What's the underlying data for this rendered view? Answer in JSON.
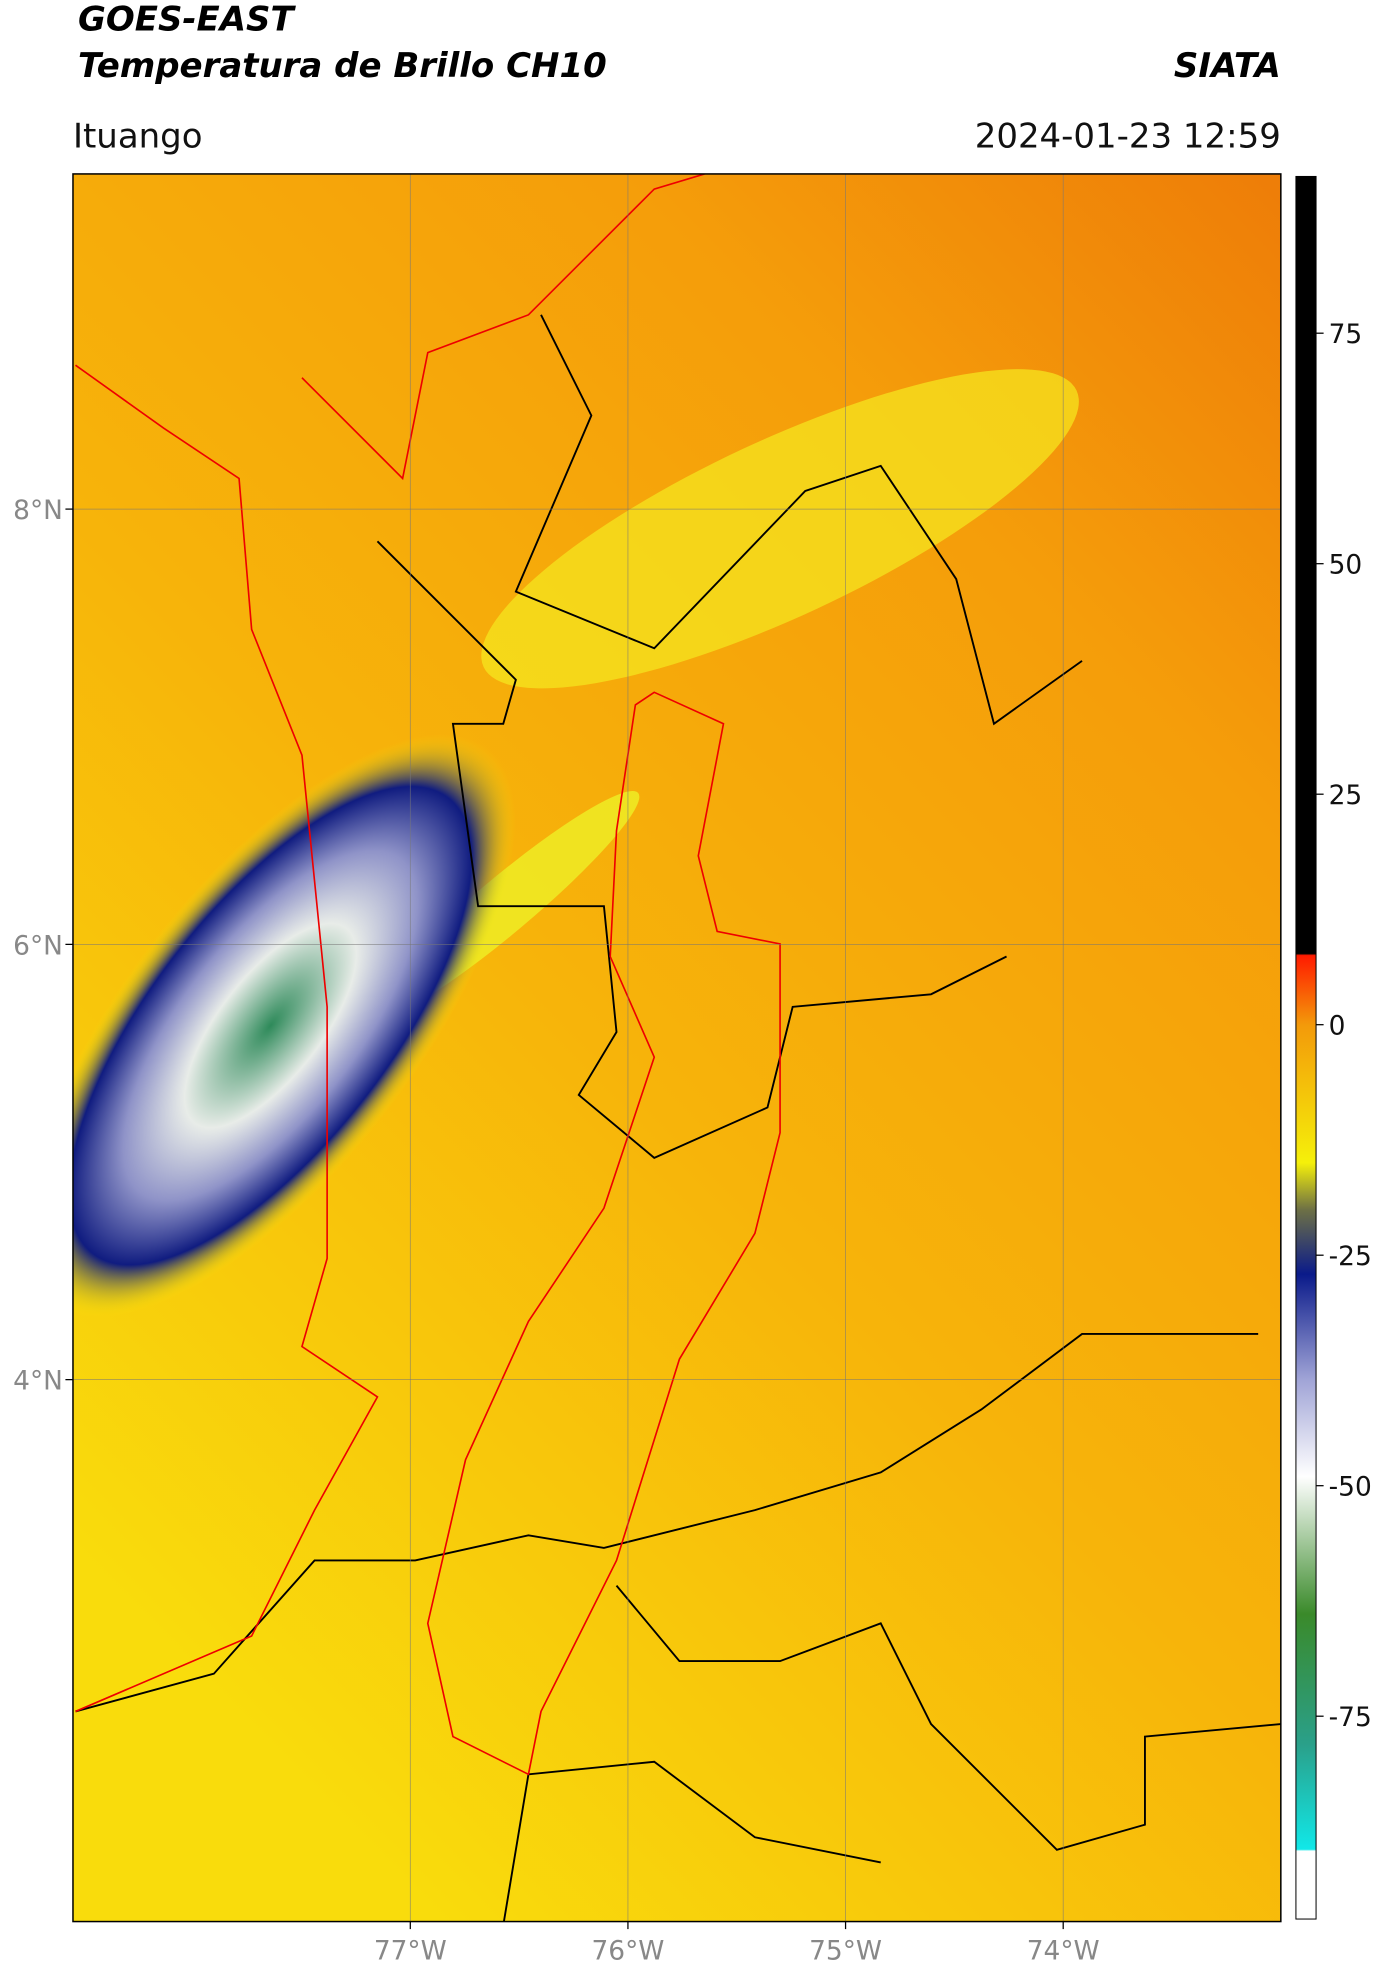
{
  "header": {
    "satellite": "GOES-EAST",
    "product": "Temperatura de Brillo CH10",
    "agency": "SIATA",
    "region": "Ituango",
    "datetime": "2024-01-23 12:59"
  },
  "map": {
    "xlim": [
      -78.55,
      -73.0
    ],
    "ylim": [
      1.51,
      9.54
    ],
    "grid": true,
    "xticks": [
      {
        "value": -77,
        "label": "77°W"
      },
      {
        "value": -76,
        "label": "76°W"
      },
      {
        "value": -75,
        "label": "75°W"
      },
      {
        "value": -74,
        "label": "74°W"
      }
    ],
    "yticks": [
      {
        "value": 4,
        "label": "4°N"
      },
      {
        "value": 6,
        "label": "6°N"
      },
      {
        "value": 8,
        "label": "8°N"
      }
    ]
  },
  "colorbar": {
    "lim": [
      -97,
      92
    ],
    "ticks": [
      75,
      50,
      25,
      0,
      -25,
      -50,
      -75
    ]
  }
}
